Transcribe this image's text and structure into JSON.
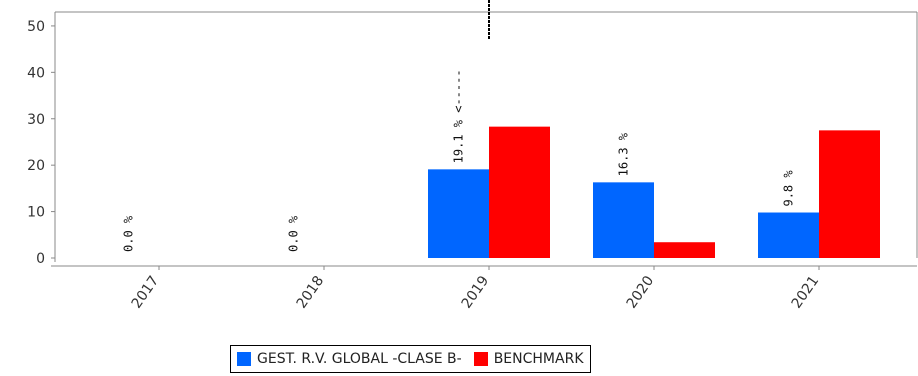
{
  "chart_data": {
    "type": "bar",
    "categories": [
      "2017",
      "2018",
      "2019",
      "2020",
      "2021"
    ],
    "series": [
      {
        "name": "GEST. R.V. GLOBAL -CLASE B-",
        "color": "#0066ff",
        "values": [
          0.0,
          0.0,
          19.1,
          16.3,
          9.8
        ]
      },
      {
        "name": "BENCHMARK",
        "color": "#ff0000",
        "values": [
          null,
          null,
          28.3,
          3.4,
          27.5
        ]
      }
    ],
    "data_labels": [
      "0.0 %",
      "0.0 %",
      "19.1 % <-----",
      "16.3 %",
      "9.8 %"
    ],
    "y_ticks": [
      "0",
      "10",
      "20",
      "30",
      "40",
      "50"
    ],
    "ylim": [
      0,
      53
    ],
    "grid": false,
    "marker_category": "2019",
    "legend_position": "bottom"
  }
}
